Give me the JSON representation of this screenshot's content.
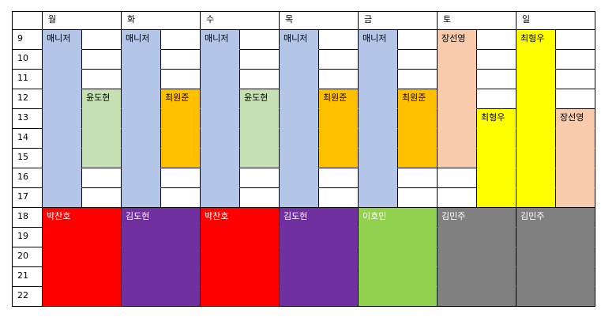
{
  "days": [
    "월",
    "화",
    "수",
    "목",
    "금",
    "토",
    "일"
  ],
  "hours": [
    "9",
    "10",
    "11",
    "12",
    "13",
    "14",
    "15",
    "16",
    "17",
    "18",
    "19",
    "20",
    "21",
    "22"
  ],
  "colors": {
    "manager_blue": "#b4c6e7",
    "green": "#c6e0b4",
    "orange": "#ffc000",
    "peach": "#f8cbad",
    "yellow": "#ffff00",
    "red": "#ff0000",
    "purple": "#7030a0",
    "lime": "#92d050",
    "gray": "#808080",
    "white": "#ffffff"
  },
  "shifts": [
    {
      "col": 1,
      "start": 0,
      "end": 9,
      "fill": "manager_blue",
      "label": "매니저",
      "text": "black"
    },
    {
      "col": 3,
      "start": 0,
      "end": 9,
      "fill": "manager_blue",
      "label": "매니저",
      "text": "black"
    },
    {
      "col": 5,
      "start": 0,
      "end": 9,
      "fill": "manager_blue",
      "label": "매니저",
      "text": "black"
    },
    {
      "col": 7,
      "start": 0,
      "end": 9,
      "fill": "manager_blue",
      "label": "매니저",
      "text": "black"
    },
    {
      "col": 9,
      "start": 0,
      "end": 9,
      "fill": "manager_blue",
      "label": "매니저",
      "text": "black"
    },
    {
      "col": 11,
      "start": 0,
      "end": 7,
      "fill": "peach",
      "label": "장선영",
      "text": "black"
    },
    {
      "col": 13,
      "start": 0,
      "end": 9,
      "fill": "yellow",
      "label": "최형우",
      "text": "black"
    },
    {
      "col": 2,
      "start": 3,
      "end": 7,
      "fill": "green",
      "label": "윤도현",
      "text": "black"
    },
    {
      "col": 4,
      "start": 3,
      "end": 7,
      "fill": "orange",
      "label": "최원준",
      "text": "black"
    },
    {
      "col": 6,
      "start": 3,
      "end": 7,
      "fill": "green",
      "label": "윤도현",
      "text": "black"
    },
    {
      "col": 8,
      "start": 3,
      "end": 7,
      "fill": "orange",
      "label": "최원준",
      "text": "black"
    },
    {
      "col": 10,
      "start": 3,
      "end": 7,
      "fill": "orange",
      "label": "최원준",
      "text": "black"
    },
    {
      "col": 12,
      "start": 4,
      "end": 9,
      "fill": "yellow",
      "label": "최형우",
      "text": "black"
    },
    {
      "col": 14,
      "start": 4,
      "end": 9,
      "fill": "peach",
      "label": "장선영",
      "text": "black"
    },
    {
      "col": 1,
      "start": 9,
      "end": 14,
      "span": 2,
      "fill": "red",
      "label": "박찬호",
      "text": "white"
    },
    {
      "col": 3,
      "start": 9,
      "end": 14,
      "span": 2,
      "fill": "purple",
      "label": "김도현",
      "text": "white"
    },
    {
      "col": 5,
      "start": 9,
      "end": 14,
      "span": 2,
      "fill": "red",
      "label": "박찬호",
      "text": "white"
    },
    {
      "col": 7,
      "start": 9,
      "end": 14,
      "span": 2,
      "fill": "purple",
      "label": "김도현",
      "text": "white"
    },
    {
      "col": 9,
      "start": 9,
      "end": 14,
      "span": 2,
      "fill": "lime",
      "label": "이호민",
      "text": "white"
    },
    {
      "col": 11,
      "start": 9,
      "end": 14,
      "span": 2,
      "fill": "gray",
      "label": "김민주",
      "text": "white"
    },
    {
      "col": 13,
      "start": 9,
      "end": 14,
      "span": 2,
      "fill": "gray",
      "label": "김민주",
      "text": "white"
    }
  ]
}
